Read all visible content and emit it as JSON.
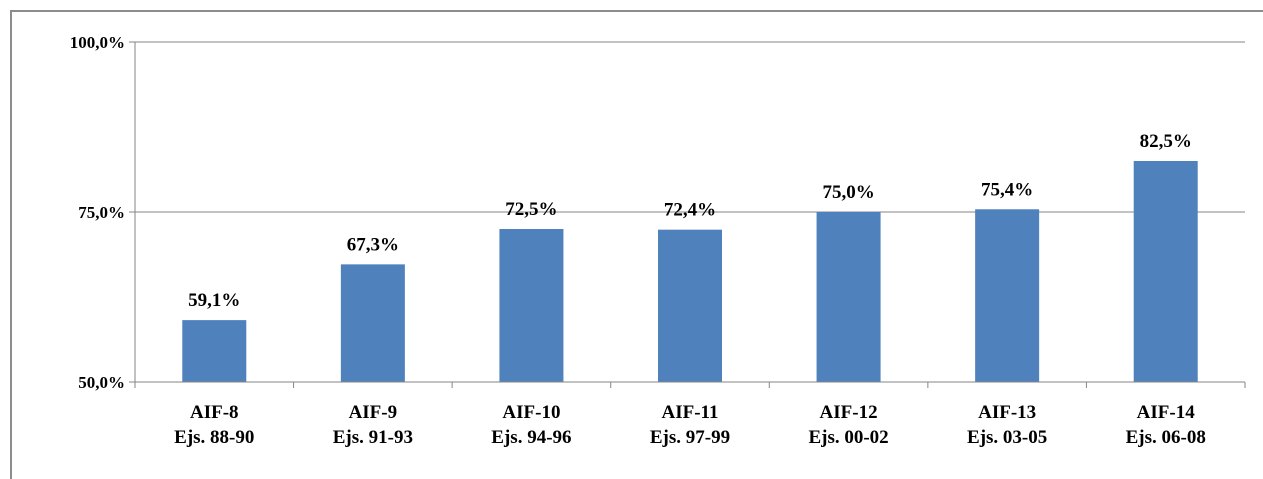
{
  "chart_data": {
    "type": "bar",
    "categories": [
      [
        "AIF-8",
        "Ejs. 88-90"
      ],
      [
        "AIF-9",
        "Ejs. 91-93"
      ],
      [
        "AIF-10",
        "Ejs. 94-96"
      ],
      [
        "AIF-11",
        "Ejs. 97-99"
      ],
      [
        "AIF-12",
        "Ejs. 00-02"
      ],
      [
        "AIF-13",
        "Ejs. 03-05"
      ],
      [
        "AIF-14",
        "Ejs. 06-08"
      ]
    ],
    "values": [
      59.1,
      67.3,
      72.5,
      72.4,
      75.0,
      75.4,
      82.5
    ],
    "data_labels": [
      "59,1%",
      "67,3%",
      "72,5%",
      "72,4%",
      "75,0%",
      "75,4%",
      "82,5%"
    ],
    "ylim": [
      50,
      100
    ],
    "yticks": [
      50,
      75,
      100
    ],
    "ytick_labels": [
      "50,0%",
      "75,0%",
      "100,0%"
    ],
    "bar_color": "#4f81bd",
    "grid": true,
    "title": "",
    "xlabel": "",
    "ylabel": ""
  }
}
